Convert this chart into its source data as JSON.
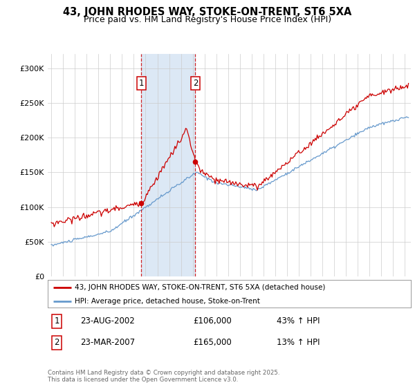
{
  "title": "43, JOHN RHODES WAY, STOKE-ON-TRENT, ST6 5XA",
  "subtitle": "Price paid vs. HM Land Registry's House Price Index (HPI)",
  "ylabel_ticks": [
    "£0",
    "£50K",
    "£100K",
    "£150K",
    "£200K",
    "£250K",
    "£300K"
  ],
  "ytick_vals": [
    0,
    50000,
    100000,
    150000,
    200000,
    250000,
    300000
  ],
  "ylim": [
    0,
    320000
  ],
  "xlim_start": 1994.7,
  "xlim_end": 2025.5,
  "sale1_date": 2002.64,
  "sale1_price": 106000,
  "sale2_date": 2007.22,
  "sale2_price": 165000,
  "red_line_color": "#cc0000",
  "blue_line_color": "#6699cc",
  "shade_color": "#dce8f5",
  "marker_box_color": "#cc0000",
  "legend1": "43, JOHN RHODES WAY, STOKE-ON-TRENT, ST6 5XA (detached house)",
  "legend2": "HPI: Average price, detached house, Stoke-on-Trent",
  "annotation1_label": "1",
  "annotation1_date": "23-AUG-2002",
  "annotation1_price": "£106,000",
  "annotation1_hpi": "43% ↑ HPI",
  "annotation2_label": "2",
  "annotation2_date": "23-MAR-2007",
  "annotation2_price": "£165,000",
  "annotation2_hpi": "13% ↑ HPI",
  "footer": "Contains HM Land Registry data © Crown copyright and database right 2025.\nThis data is licensed under the Open Government Licence v3.0.",
  "bg_color": "#ffffff",
  "grid_color": "#cccccc"
}
